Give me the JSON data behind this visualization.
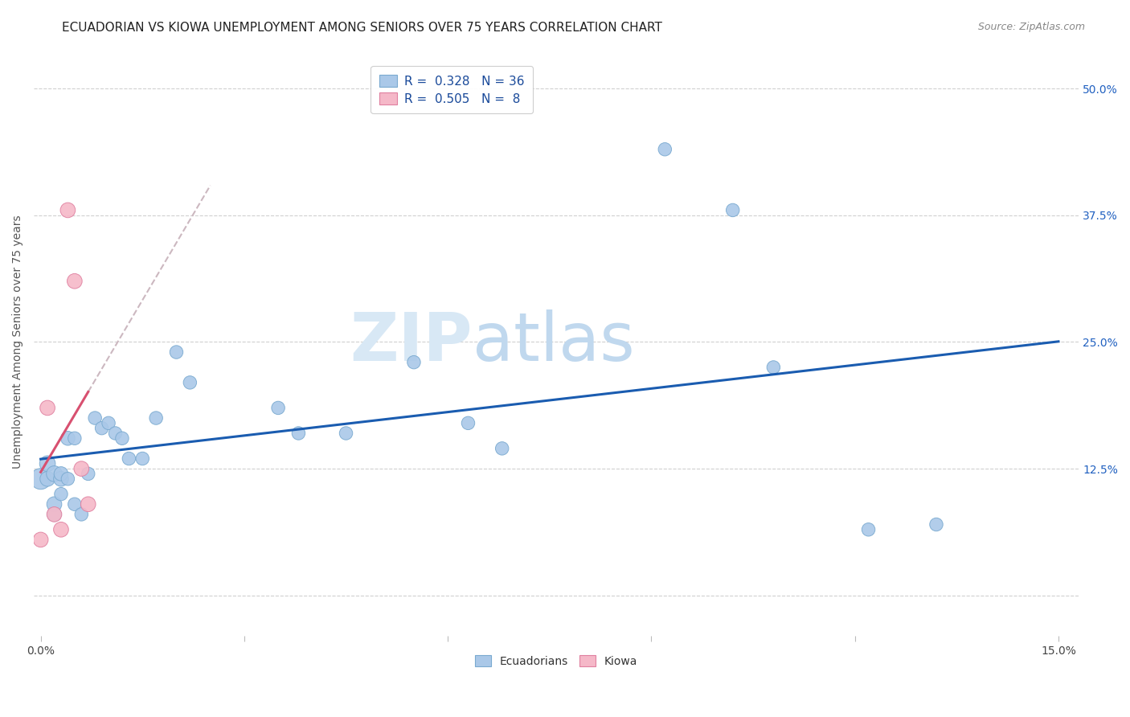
{
  "title": "ECUADORIAN VS KIOWA UNEMPLOYMENT AMONG SENIORS OVER 75 YEARS CORRELATION CHART",
  "source": "Source: ZipAtlas.com",
  "ylabel": "Unemployment Among Seniors over 75 years",
  "xlim": [
    -0.001,
    0.153
  ],
  "ylim": [
    -0.04,
    0.54
  ],
  "xticks": [
    0.0,
    0.03,
    0.06,
    0.09,
    0.12,
    0.15
  ],
  "yticks": [
    0.0,
    0.125,
    0.25,
    0.375,
    0.5
  ],
  "ytick_labels_right": [
    "",
    "12.5%",
    "25.0%",
    "37.5%",
    "50.0%"
  ],
  "xtick_labels": [
    "0.0%",
    "",
    "",
    "",
    "",
    "15.0%"
  ],
  "watermark_zip": "ZIP",
  "watermark_atlas": "atlas",
  "ecuadorians": {
    "x": [
      0.0,
      0.001,
      0.001,
      0.002,
      0.002,
      0.002,
      0.003,
      0.003,
      0.003,
      0.004,
      0.004,
      0.005,
      0.005,
      0.006,
      0.007,
      0.008,
      0.009,
      0.01,
      0.011,
      0.012,
      0.013,
      0.015,
      0.017,
      0.02,
      0.022,
      0.035,
      0.038,
      0.045,
      0.055,
      0.063,
      0.068,
      0.092,
      0.102,
      0.108,
      0.122,
      0.132
    ],
    "y": [
      0.115,
      0.13,
      0.115,
      0.12,
      0.09,
      0.08,
      0.115,
      0.12,
      0.1,
      0.155,
      0.115,
      0.155,
      0.09,
      0.08,
      0.12,
      0.175,
      0.165,
      0.17,
      0.16,
      0.155,
      0.135,
      0.135,
      0.175,
      0.24,
      0.21,
      0.185,
      0.16,
      0.16,
      0.23,
      0.17,
      0.145,
      0.44,
      0.38,
      0.225,
      0.065,
      0.07
    ],
    "sizes": [
      350,
      200,
      180,
      200,
      180,
      160,
      180,
      160,
      140,
      160,
      140,
      140,
      140,
      140,
      140,
      140,
      140,
      140,
      140,
      140,
      140,
      140,
      140,
      140,
      140,
      140,
      140,
      140,
      140,
      140,
      140,
      140,
      140,
      140,
      140,
      140
    ],
    "color": "#aac8e8",
    "edgecolor": "#7aaad0",
    "R": 0.328,
    "N": 36
  },
  "kiowa": {
    "x": [
      0.0,
      0.001,
      0.002,
      0.003,
      0.004,
      0.005,
      0.006,
      0.007
    ],
    "y": [
      0.055,
      0.185,
      0.08,
      0.065,
      0.38,
      0.31,
      0.125,
      0.09
    ],
    "sizes": [
      180,
      180,
      180,
      180,
      180,
      180,
      180,
      180
    ],
    "color": "#f5b8c8",
    "edgecolor": "#e080a0",
    "R": 0.505,
    "N": 8
  },
  "blue_line_color": "#1a5cb0",
  "pink_line_color": "#d85070",
  "dashed_line_color": "#ccb8c0",
  "title_fontsize": 11,
  "source_fontsize": 9,
  "axis_label_fontsize": 10,
  "legend_fontsize": 11,
  "watermark_color": "#d8e8f5",
  "watermark_fontsize": 60,
  "atlas_color": "#c0d8ee"
}
